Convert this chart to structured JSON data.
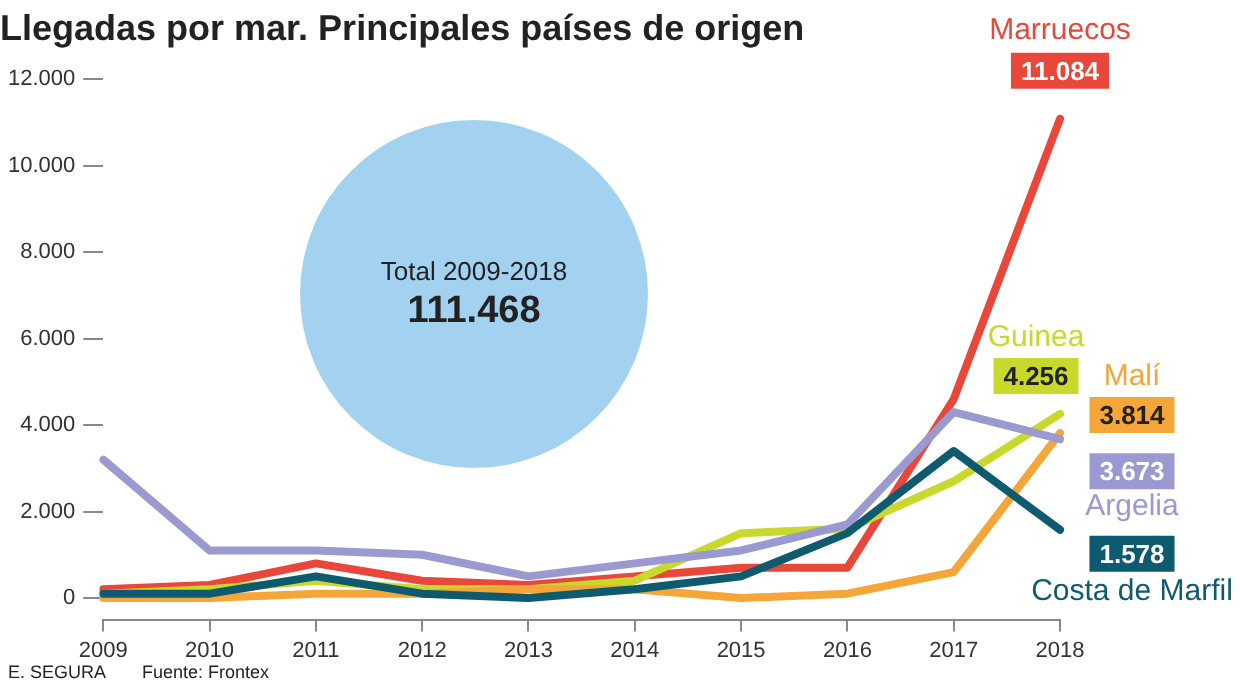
{
  "chart_data": {
    "type": "line",
    "title": "Llegadas por mar. Principales países de origen",
    "categories": [
      "2009",
      "2010",
      "2011",
      "2012",
      "2013",
      "2014",
      "2015",
      "2016",
      "2017",
      "2018"
    ],
    "series": [
      {
        "name": "Marruecos",
        "color": "#e8473a",
        "values": [
          200,
          300,
          800,
          400,
          300,
          500,
          700,
          700,
          4600,
          11084
        ],
        "value_labels": [
          null,
          null,
          null,
          null,
          null,
          null,
          null,
          null,
          null,
          "11.084"
        ]
      },
      {
        "name": "Guinea",
        "color": "#c8d92b",
        "values": [
          100,
          200,
          400,
          200,
          200,
          400,
          1500,
          1600,
          2700,
          4256
        ],
        "value_labels": [
          null,
          null,
          null,
          null,
          null,
          null,
          null,
          null,
          null,
          "4.256"
        ]
      },
      {
        "name": "Malí",
        "color": "#f4a638",
        "values": [
          0,
          0,
          100,
          100,
          200,
          200,
          0,
          100,
          600,
          3814
        ],
        "value_labels": [
          null,
          null,
          null,
          null,
          null,
          null,
          null,
          null,
          null,
          "3.814"
        ]
      },
      {
        "name": "Argelia",
        "color": "#9a9ad0",
        "values": [
          3200,
          1100,
          1100,
          1000,
          500,
          800,
          1100,
          1700,
          4300,
          3673
        ],
        "value_labels": [
          null,
          null,
          null,
          null,
          null,
          null,
          null,
          null,
          null,
          "3.673"
        ]
      },
      {
        "name": "Costa de Marfil",
        "color": "#0e5a6e",
        "values": [
          100,
          100,
          500,
          100,
          0,
          200,
          500,
          1500,
          3400,
          1578
        ],
        "value_labels": [
          null,
          null,
          null,
          null,
          null,
          null,
          null,
          null,
          null,
          "1.578"
        ]
      }
    ],
    "ylim": [
      -500,
      12000
    ],
    "yticks": [
      0,
      {
        "value": 2000,
        "label": "2.000"
      },
      {
        "value": 4000,
        "label": "4.000"
      },
      {
        "value": 6000,
        "label": "6.000"
      },
      {
        "value": 8000,
        "label": "8.000"
      },
      {
        "value": 10000,
        "label": "10.000"
      },
      {
        "value": 12000,
        "label": "12.000"
      }
    ],
    "grid": false,
    "legend": "right",
    "marker": "none",
    "line_style": "solid",
    "annotations": [
      "Total 2009-2018",
      "111.468",
      "E. SEGURA",
      "Fuente: Frontex"
    ]
  }
}
